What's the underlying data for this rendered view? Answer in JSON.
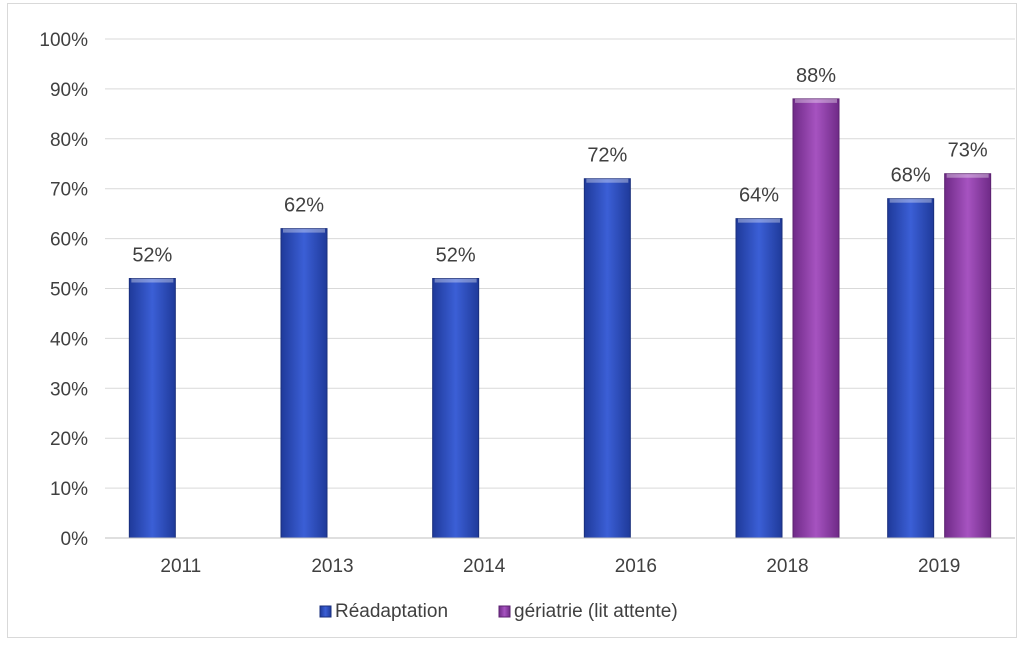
{
  "chart_data": {
    "type": "bar",
    "categories": [
      "2011",
      "2013",
      "2014",
      "2016",
      "2018",
      "2019"
    ],
    "series": [
      {
        "name": "Réadaptation",
        "values": [
          52,
          62,
          52,
          72,
          64,
          68
        ],
        "labels": [
          "52%",
          "62%",
          "52%",
          "72%",
          "64%",
          "68%"
        ],
        "color": "#2f4fbf"
      },
      {
        "name": "gériatrie (lit attente)",
        "values": [
          null,
          null,
          null,
          null,
          88,
          73
        ],
        "labels": [
          "",
          "",
          "",
          "",
          "88%",
          "73%"
        ],
        "color": "#8e3fa6"
      }
    ],
    "y_ticks": [
      "0%",
      "10%",
      "20%",
      "30%",
      "40%",
      "50%",
      "60%",
      "70%",
      "80%",
      "90%",
      "100%"
    ],
    "ylim": [
      0,
      100
    ],
    "grid": true,
    "legend_position": "bottom"
  }
}
